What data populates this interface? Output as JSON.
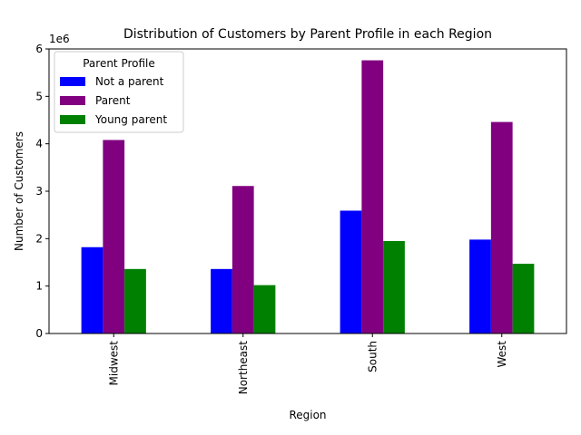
{
  "chart_data": {
    "type": "bar",
    "title": "Distribution of Customers by Parent Profile in each Region",
    "xlabel": "Region",
    "ylabel": "Number of Customers",
    "y_offset_text": "1e6",
    "categories": [
      "Midwest",
      "Northeast",
      "South",
      "West"
    ],
    "series": [
      {
        "name": "Not a parent",
        "color": "#0000ff",
        "values": [
          1820000,
          1360000,
          2590000,
          1980000
        ]
      },
      {
        "name": "Parent",
        "color": "#800080",
        "values": [
          4080000,
          3110000,
          5760000,
          4460000
        ]
      },
      {
        "name": "Young parent",
        "color": "#008000",
        "values": [
          1360000,
          1020000,
          1950000,
          1470000
        ]
      }
    ],
    "ylim": [
      0,
      6000000
    ],
    "yticks": [
      0,
      1000000,
      2000000,
      3000000,
      4000000,
      5000000,
      6000000
    ],
    "ytick_labels": [
      "0",
      "1",
      "2",
      "3",
      "4",
      "5",
      "6"
    ],
    "legend": {
      "title": "Parent Profile",
      "placement": "top-left"
    },
    "grid": false
  }
}
